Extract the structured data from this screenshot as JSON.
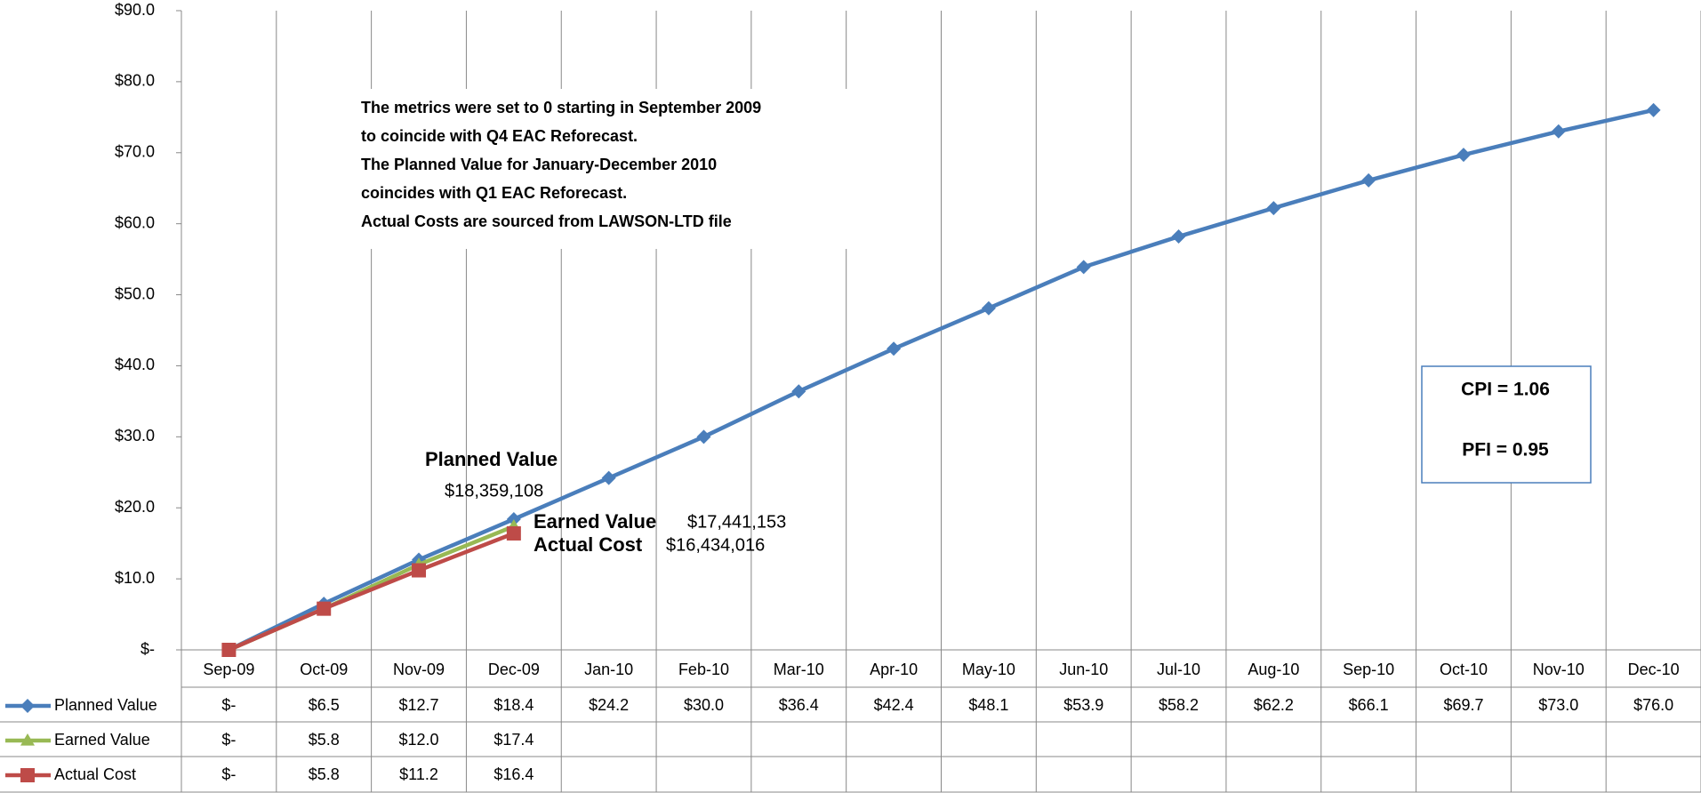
{
  "chart_data": {
    "type": "line",
    "categories": [
      "Sep-09",
      "Oct-09",
      "Nov-09",
      "Dec-09",
      "Jan-10",
      "Feb-10",
      "Mar-10",
      "Apr-10",
      "May-10",
      "Jun-10",
      "Jul-10",
      "Aug-10",
      "Sep-10",
      "Oct-10",
      "Nov-10",
      "Dec-10"
    ],
    "series": [
      {
        "name": "Planned Value",
        "color": "#4a7ebb",
        "marker": "diamond",
        "values": [
          0,
          6.5,
          12.7,
          18.4,
          24.2,
          30.0,
          36.4,
          42.4,
          48.1,
          53.9,
          58.2,
          62.2,
          66.1,
          69.7,
          73.0,
          76.0
        ],
        "value_labels": [
          "$-",
          "$6.5",
          "$12.7",
          "$18.4",
          "$24.2",
          "$30.0",
          "$36.4",
          "$42.4",
          "$48.1",
          "$53.9",
          "$58.2",
          "$62.2",
          "$66.1",
          "$69.7",
          "$73.0",
          "$76.0"
        ]
      },
      {
        "name": "Earned Value",
        "color": "#98b954",
        "marker": "triangle",
        "values": [
          0,
          5.8,
          12.0,
          17.4,
          null,
          null,
          null,
          null,
          null,
          null,
          null,
          null,
          null,
          null,
          null,
          null
        ],
        "value_labels": [
          "$-",
          "$5.8",
          "$12.0",
          "$17.4",
          null,
          null,
          null,
          null,
          null,
          null,
          null,
          null,
          null,
          null,
          null,
          null
        ]
      },
      {
        "name": "Actual Cost",
        "color": "#be4b48",
        "marker": "square",
        "values": [
          0,
          5.8,
          11.2,
          16.4,
          null,
          null,
          null,
          null,
          null,
          null,
          null,
          null,
          null,
          null,
          null,
          null
        ],
        "value_labels": [
          "$-",
          "$5.8",
          "$11.2",
          "$16.4",
          null,
          null,
          null,
          null,
          null,
          null,
          null,
          null,
          null,
          null,
          null,
          null
        ]
      }
    ],
    "ylim": [
      0,
      90
    ],
    "yticks": [
      {
        "value": 0,
        "label": "$-"
      },
      {
        "value": 10,
        "label": "$10.0"
      },
      {
        "value": 20,
        "label": "$20.0"
      },
      {
        "value": 30,
        "label": "$30.0"
      },
      {
        "value": 40,
        "label": "$40.0"
      },
      {
        "value": 50,
        "label": "$50.0"
      },
      {
        "value": 60,
        "label": "$60.0"
      },
      {
        "value": 70,
        "label": "$70.0"
      },
      {
        "value": 80,
        "label": "$80.0"
      },
      {
        "value": 90,
        "label": "$90.0"
      }
    ],
    "note": [
      "The metrics were set to 0 starting in September 2009",
      "to coincide with Q4 EAC Reforecast.",
      "The Planned Value for January-December 2010",
      "coincides with Q1 EAC Reforecast.",
      "Actual Costs are sourced from LAWSON-LTD file"
    ],
    "annotations": {
      "planned_label": "Planned Value",
      "planned_amount": "$18,359,108",
      "earned_label": "Earned Value",
      "earned_amount": "$17,441,153",
      "actual_label": "Actual Cost",
      "actual_amount": "$16,434,016",
      "cpi": "CPI  = 1.06",
      "pfi": "PFI  =  0.95"
    }
  }
}
